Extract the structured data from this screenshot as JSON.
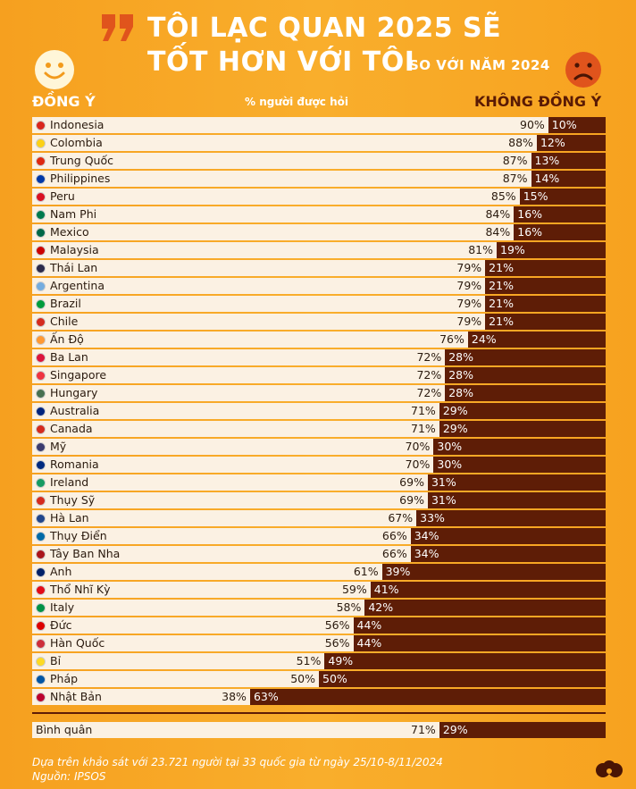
{
  "header": {
    "title_line1": "TÔI LẠC QUAN 2025 SẼ",
    "title_line2": "TỐT HƠN VỚI TÔI",
    "title_suffix": "SO VỚI NĂM 2024",
    "agree_label": "ĐỒNG Ý",
    "disagree_label": "KHÔNG ĐỒNG Ý",
    "unit_label": "% người được hỏi"
  },
  "colors": {
    "background": "#f7a623",
    "agree_bar": "#fbf1e3",
    "disagree_bar": "#5e1d06"
  },
  "chart_data": {
    "type": "bar",
    "orientation": "horizontal-stacked",
    "series": [
      {
        "name": "ĐỒNG Ý",
        "values": [
          90,
          88,
          87,
          87,
          85,
          84,
          84,
          81,
          79,
          79,
          79,
          79,
          76,
          72,
          72,
          72,
          71,
          71,
          70,
          70,
          69,
          69,
          67,
          66,
          66,
          61,
          59,
          58,
          56,
          56,
          51,
          50,
          38
        ]
      },
      {
        "name": "KHÔNG ĐỒNG Ý",
        "values": [
          10,
          12,
          13,
          14,
          15,
          16,
          16,
          19,
          21,
          21,
          21,
          21,
          24,
          28,
          28,
          28,
          29,
          29,
          30,
          30,
          31,
          31,
          33,
          34,
          34,
          39,
          41,
          42,
          44,
          44,
          49,
          50,
          63
        ]
      }
    ],
    "categories": [
      "Indonesia",
      "Colombia",
      "Trung Quốc",
      "Philippines",
      "Peru",
      "Nam Phi",
      "Mexico",
      "Malaysia",
      "Thái Lan",
      "Argentina",
      "Brazil",
      "Chile",
      "Ấn Độ",
      "Ba Lan",
      "Singapore",
      "Hungary",
      "Australia",
      "Canada",
      "Mỹ",
      "Romania",
      "Ireland",
      "Thụy Sỹ",
      "Hà Lan",
      "Thụy Điển",
      "Tây Ban Nha",
      "Anh",
      "Thổ Nhĩ Kỳ",
      "Italy",
      "Đức",
      "Hàn Quốc",
      "Bỉ",
      "Pháp",
      "Nhật Bản"
    ],
    "flags": [
      "#d9251d",
      "#fcd116",
      "#de2910",
      "#0038a8",
      "#d91023",
      "#007a4d",
      "#006847",
      "#cc0001",
      "#2d2a4a",
      "#74acdf",
      "#009c3b",
      "#d52b1e",
      "#ff9933",
      "#dc143c",
      "#ef3340",
      "#477050",
      "#00247d",
      "#d52b1e",
      "#3c3b6e",
      "#002b7f",
      "#169b62",
      "#d52b1e",
      "#21468b",
      "#006aa7",
      "#aa151b",
      "#012169",
      "#e30a17",
      "#009246",
      "#dd0000",
      "#cd2e3a",
      "#fdda24",
      "#0055a4",
      "#bc002d"
    ],
    "average": {
      "label": "Bình quân",
      "agree": 71,
      "disagree": 29
    },
    "xlim": [
      0,
      100
    ]
  },
  "footer": {
    "note": "Dựa trên khảo sát với 23.721 người tại 33 quốc gia từ ngày 25/10-8/11/2024",
    "source": "Nguồn: IPSOS"
  }
}
